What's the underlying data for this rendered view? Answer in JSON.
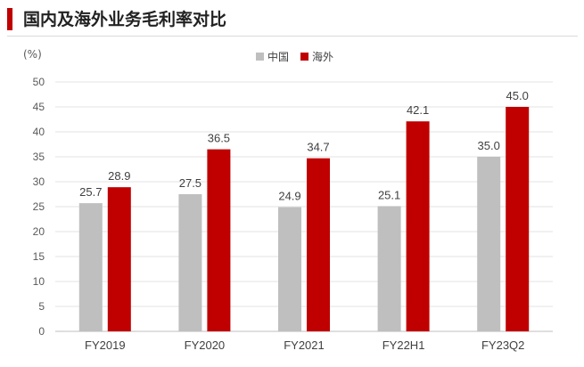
{
  "header": {
    "title": "国内及海外业务毛利率对比"
  },
  "chart_data": {
    "type": "bar",
    "title": "国内及海外业务毛利率对比",
    "unit_label": "(%)",
    "categories": [
      "FY2019",
      "FY2020",
      "FY2021",
      "FY22H1",
      "FY23Q2"
    ],
    "series": [
      {
        "name": "中国",
        "color": "#bfbfbf",
        "values": [
          25.7,
          27.5,
          24.9,
          25.1,
          35.0
        ]
      },
      {
        "name": "海外",
        "color": "#c00000",
        "values": [
          28.9,
          36.5,
          34.7,
          42.1,
          45.0
        ]
      }
    ],
    "ylim": [
      0,
      50
    ],
    "yticks": [
      0,
      5,
      10,
      15,
      20,
      25,
      30,
      35,
      40,
      45,
      50
    ],
    "grid": true,
    "legend_position": "top-center",
    "value_labels": true
  }
}
